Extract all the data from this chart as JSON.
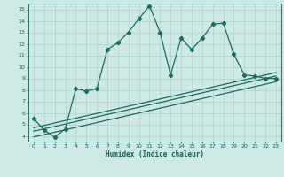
{
  "xlabel": "Humidex (Indice chaleur)",
  "background_color": "#cde8e5",
  "grid_color": "#b0d0ce",
  "line_color": "#1e6b60",
  "xlim": [
    -0.5,
    23.5
  ],
  "ylim": [
    3.5,
    15.5
  ],
  "xticks": [
    0,
    1,
    2,
    3,
    4,
    5,
    6,
    7,
    8,
    9,
    10,
    11,
    12,
    13,
    14,
    15,
    16,
    17,
    18,
    19,
    20,
    21,
    22,
    23
  ],
  "yticks": [
    4,
    5,
    6,
    7,
    8,
    9,
    10,
    11,
    12,
    13,
    14,
    15
  ],
  "line1_x": [
    0,
    1,
    2,
    3,
    4,
    5,
    6,
    7,
    8,
    9,
    10,
    11,
    12,
    13,
    14,
    15,
    16,
    17,
    18,
    19,
    20,
    21,
    22,
    23
  ],
  "line1_y": [
    5.5,
    4.5,
    3.9,
    4.6,
    8.1,
    7.9,
    8.1,
    11.5,
    12.1,
    13.0,
    14.2,
    15.3,
    13.0,
    9.3,
    12.5,
    11.5,
    12.5,
    13.7,
    13.8,
    11.1,
    9.3,
    9.2,
    9.0,
    9.0
  ],
  "line2_x": [
    0,
    23
  ],
  "line2_y": [
    4.4,
    9.2
  ],
  "line3_x": [
    0,
    23
  ],
  "line3_y": [
    3.9,
    8.7
  ],
  "line4_x": [
    0,
    23
  ],
  "line4_y": [
    4.7,
    9.5
  ]
}
